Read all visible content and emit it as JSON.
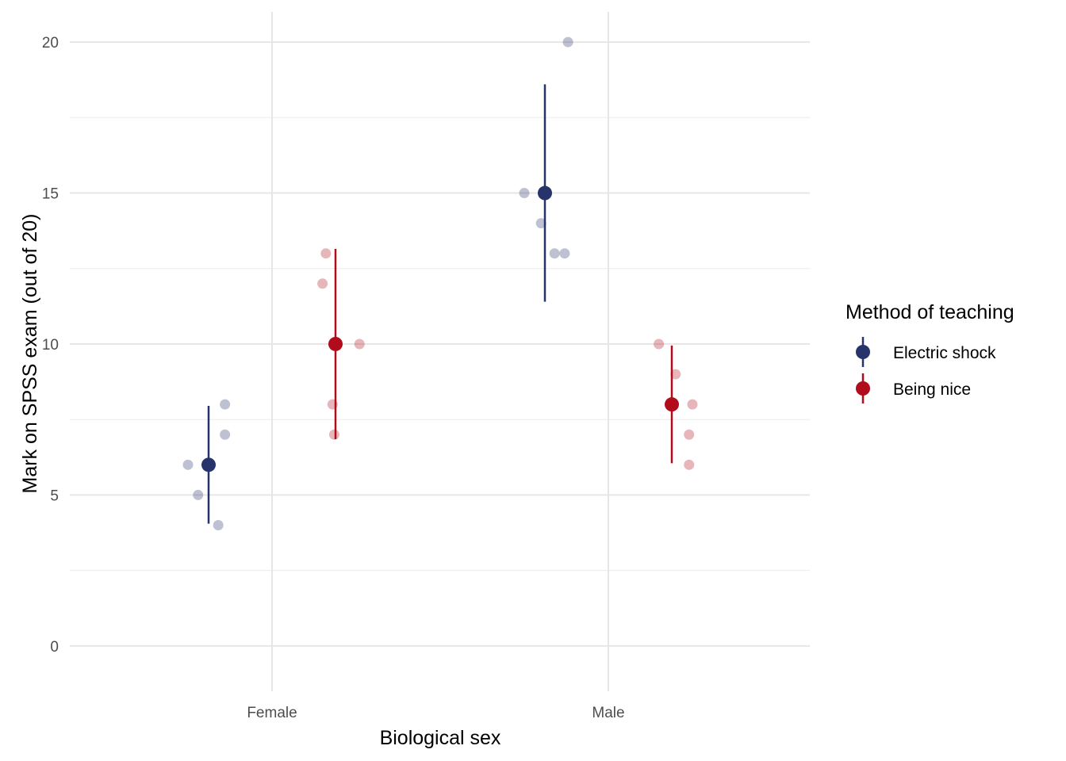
{
  "chart_data": {
    "type": "scatter",
    "xlabel": "Biological sex",
    "ylabel": "Mark on SPSS exam (out of 20)",
    "categories": [
      "Female",
      "Male"
    ],
    "ylim": [
      -1.5,
      21
    ],
    "yticks": [
      0,
      5,
      10,
      15,
      20
    ],
    "grid": true,
    "legend": {
      "title": "Method of teaching",
      "placement": "right"
    },
    "series": [
      {
        "name": "Electric shock",
        "color": "#27336b",
        "summary": [
          {
            "category": "Female",
            "mean": 6,
            "lower": 4.05,
            "upper": 7.95
          },
          {
            "category": "Male",
            "mean": 15,
            "lower": 11.4,
            "upper": 18.6
          }
        ],
        "points": [
          {
            "category": "Female",
            "jitter": -0.25,
            "y": 6
          },
          {
            "category": "Female",
            "jitter": -0.22,
            "y": 5
          },
          {
            "category": "Female",
            "jitter": -0.16,
            "y": 4
          },
          {
            "category": "Female",
            "jitter": -0.14,
            "y": 8
          },
          {
            "category": "Female",
            "jitter": -0.14,
            "y": 7
          },
          {
            "category": "Male",
            "jitter": -0.25,
            "y": 15
          },
          {
            "category": "Male",
            "jitter": -0.2,
            "y": 14
          },
          {
            "category": "Male",
            "jitter": -0.16,
            "y": 13
          },
          {
            "category": "Male",
            "jitter": -0.13,
            "y": 13
          },
          {
            "category": "Male",
            "jitter": -0.12,
            "y": 20
          }
        ]
      },
      {
        "name": "Being nice",
        "color": "#b10c1b",
        "summary": [
          {
            "category": "Female",
            "mean": 10,
            "lower": 6.85,
            "upper": 13.15
          },
          {
            "category": "Male",
            "mean": 8,
            "lower": 6.05,
            "upper": 9.95
          }
        ],
        "points": [
          {
            "category": "Female",
            "jitter": 0.15,
            "y": 12
          },
          {
            "category": "Female",
            "jitter": 0.16,
            "y": 13
          },
          {
            "category": "Female",
            "jitter": 0.18,
            "y": 8
          },
          {
            "category": "Female",
            "jitter": 0.185,
            "y": 7
          },
          {
            "category": "Female",
            "jitter": 0.26,
            "y": 10
          },
          {
            "category": "Male",
            "jitter": 0.15,
            "y": 10
          },
          {
            "category": "Male",
            "jitter": 0.2,
            "y": 9
          },
          {
            "category": "Male",
            "jitter": 0.24,
            "y": 7
          },
          {
            "category": "Male",
            "jitter": 0.24,
            "y": 6
          },
          {
            "category": "Male",
            "jitter": 0.25,
            "y": 8
          }
        ]
      }
    ]
  }
}
